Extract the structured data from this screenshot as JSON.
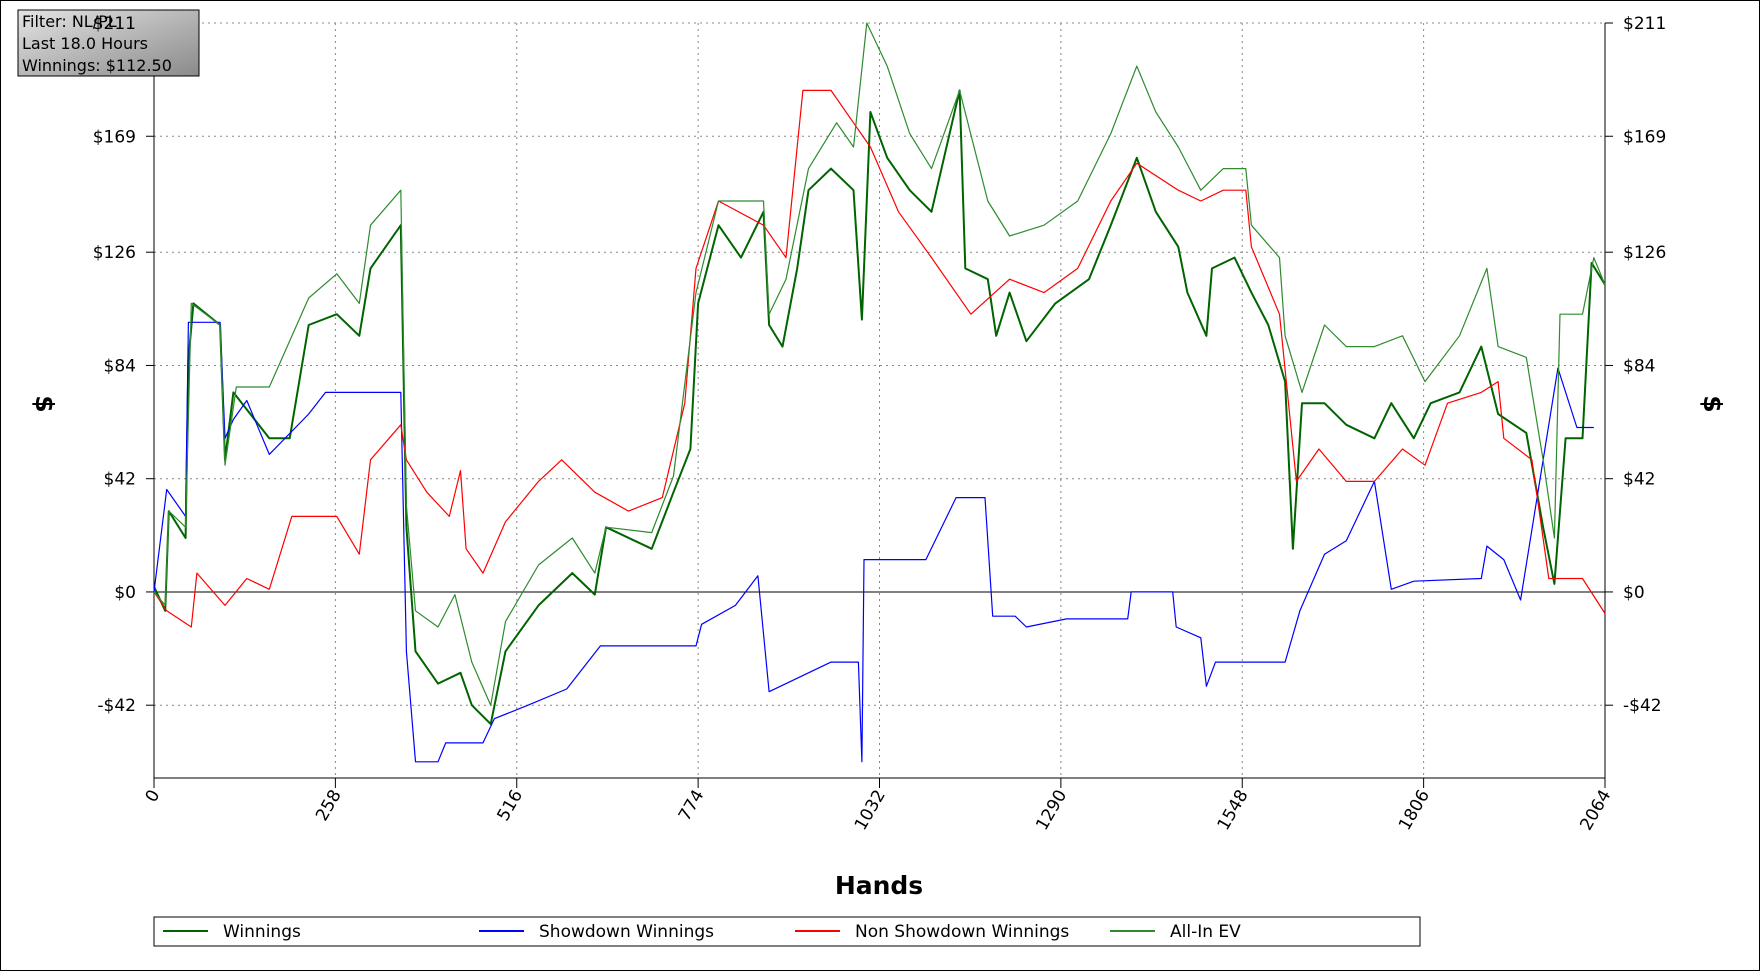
{
  "chart_data": {
    "type": "line",
    "annotations": [
      "Filter: NL/PL",
      "Last 18.0 Hours",
      "Winnings: $112.50"
    ],
    "xlabel": "Hands",
    "ylabel": "$",
    "y2label": "$",
    "xlim": [
      0,
      2064
    ],
    "xticks": [
      0,
      258,
      516,
      774,
      1032,
      1290,
      1548,
      1806,
      2064
    ],
    "ylim": [
      -69,
      211
    ],
    "yticks": [
      {
        "value": -42,
        "label": "-$42"
      },
      {
        "value": 0,
        "label": "$0"
      },
      {
        "value": 42,
        "label": "$42"
      },
      {
        "value": 84,
        "label": "$84"
      },
      {
        "value": 126,
        "label": "$126"
      },
      {
        "value": 169,
        "label": "$169"
      },
      {
        "value": 211,
        "label": "$211"
      }
    ],
    "grid": true,
    "series": [
      {
        "name": "Winnings",
        "color": "#006400",
        "x": [
          0,
          16,
          21,
          45,
          49,
          56,
          94,
          101,
          113,
          164,
          193,
          220,
          260,
          292,
          308,
          351,
          359,
          372,
          404,
          436,
          452,
          479,
          500,
          547,
          595,
          627,
          643,
          708,
          739,
          763,
          774,
          803,
          835,
          867,
          875,
          894,
          915,
          931,
          963,
          995,
          1007,
          1019,
          1043,
          1075,
          1106,
          1146,
          1154,
          1186,
          1198,
          1217,
          1241,
          1282,
          1330,
          1361,
          1398,
          1425,
          1457,
          1470,
          1497,
          1505,
          1537,
          1561,
          1585,
          1609,
          1620,
          1633,
          1665,
          1696,
          1736,
          1760,
          1792,
          1816,
          1857,
          1888,
          1912,
          1952,
          1976,
          1992,
          2008,
          2032,
          2045,
          2064
        ],
        "values": [
          2,
          -7,
          30,
          20,
          86,
          107,
          99,
          49,
          74,
          57,
          57,
          99,
          103,
          95,
          120,
          136,
          24,
          -22,
          -34,
          -30,
          -42,
          -49,
          -22,
          -5,
          7,
          -1,
          24,
          16,
          37,
          53,
          107,
          136,
          124,
          141,
          99,
          91,
          120,
          149,
          157,
          149,
          101,
          178,
          161,
          149,
          141,
          186,
          120,
          116,
          95,
          111,
          93,
          107,
          116,
          136,
          161,
          141,
          128,
          111,
          95,
          120,
          124,
          111,
          99,
          78,
          16,
          70,
          70,
          62,
          57,
          70,
          57,
          70,
          74,
          91,
          66,
          59,
          24,
          3,
          57,
          57,
          122,
          114
        ]
      },
      {
        "name": "Showdown Winnings",
        "color": "#0000ff",
        "x": [
          0,
          18,
          45,
          49,
          94,
          101,
          113,
          132,
          164,
          220,
          244,
          351,
          359,
          372,
          404,
          415,
          468,
          484,
          532,
          587,
          635,
          771,
          779,
          827,
          859,
          875,
          963,
          1002,
          1007,
          1010,
          1098,
          1141,
          1182,
          1193,
          1225,
          1241,
          1298,
          1385,
          1390,
          1449,
          1454,
          1489,
          1497,
          1510,
          1609,
          1630,
          1665,
          1696,
          1736,
          1760,
          1792,
          1888,
          1896,
          1920,
          1944,
          1997,
          2024,
          2048
        ],
        "values": [
          0,
          38,
          28,
          100,
          100,
          57,
          64,
          71,
          51,
          66,
          74,
          74,
          -22,
          -63,
          -63,
          -56,
          -56,
          -47,
          -42,
          -36,
          -20,
          -20,
          -12,
          -5,
          6,
          -37,
          -26,
          -26,
          -63,
          12,
          12,
          35,
          35,
          -9,
          -9,
          -13,
          -10,
          -10,
          0,
          0,
          -13,
          -17,
          -35,
          -26,
          -26,
          -7,
          14,
          19,
          41,
          1,
          4,
          5,
          17,
          12,
          -3,
          83,
          61,
          61
        ]
      },
      {
        "name": "Non Showdown Winnings",
        "color": "#ff0000",
        "x": [
          0,
          18,
          53,
          61,
          101,
          132,
          164,
          196,
          260,
          292,
          308,
          351,
          359,
          388,
          420,
          436,
          444,
          468,
          500,
          547,
          580,
          627,
          675,
          723,
          755,
          771,
          803,
          867,
          899,
          923,
          963,
          995,
          1019,
          1059,
          1106,
          1162,
          1217,
          1266,
          1314,
          1361,
          1398,
          1457,
          1489,
          1521,
          1553,
          1561,
          1601,
          1625,
          1657,
          1696,
          1736,
          1776,
          1808,
          1840,
          1888,
          1912,
          1920,
          1960,
          1984,
          2032,
          2064
        ],
        "values": [
          0,
          -7,
          -13,
          7,
          -5,
          5,
          1,
          28,
          28,
          14,
          49,
          62,
          49,
          37,
          28,
          45,
          16,
          7,
          26,
          41,
          49,
          37,
          30,
          35,
          70,
          120,
          145,
          136,
          124,
          186,
          186,
          174,
          165,
          141,
          124,
          103,
          116,
          111,
          120,
          145,
          159,
          149,
          145,
          149,
          149,
          128,
          103,
          41,
          53,
          41,
          41,
          53,
          47,
          70,
          74,
          78,
          57,
          49,
          5,
          5,
          -8
        ]
      },
      {
        "name": "All-In EV",
        "color": "#2e8b2e",
        "x": [
          0,
          16,
          21,
          45,
          53,
          94,
          101,
          117,
          164,
          220,
          260,
          292,
          308,
          351,
          359,
          372,
          404,
          428,
          452,
          479,
          500,
          547,
          595,
          627,
          643,
          708,
          739,
          771,
          803,
          867,
          875,
          899,
          931,
          971,
          995,
          1014,
          1043,
          1075,
          1106,
          1146,
          1186,
          1217,
          1266,
          1314,
          1361,
          1398,
          1425,
          1457,
          1489,
          1521,
          1553,
          1561,
          1601,
          1609,
          1633,
          1665,
          1696,
          1736,
          1776,
          1808,
          1857,
          1896,
          1912,
          1952,
          1976,
          1992,
          2000,
          2032,
          2048,
          2064
        ],
        "values": [
          0,
          -5,
          30,
          24,
          107,
          99,
          47,
          76,
          76,
          109,
          118,
          107,
          136,
          149,
          32,
          -7,
          -13,
          -1,
          -26,
          -42,
          -11,
          10,
          20,
          7,
          24,
          22,
          43,
          111,
          145,
          145,
          103,
          116,
          157,
          174,
          165,
          211,
          195,
          170,
          157,
          186,
          145,
          132,
          136,
          145,
          170,
          195,
          178,
          165,
          149,
          157,
          157,
          136,
          124,
          95,
          74,
          99,
          91,
          91,
          95,
          78,
          95,
          120,
          91,
          87,
          49,
          20,
          103,
          103,
          124,
          114
        ]
      }
    ]
  }
}
